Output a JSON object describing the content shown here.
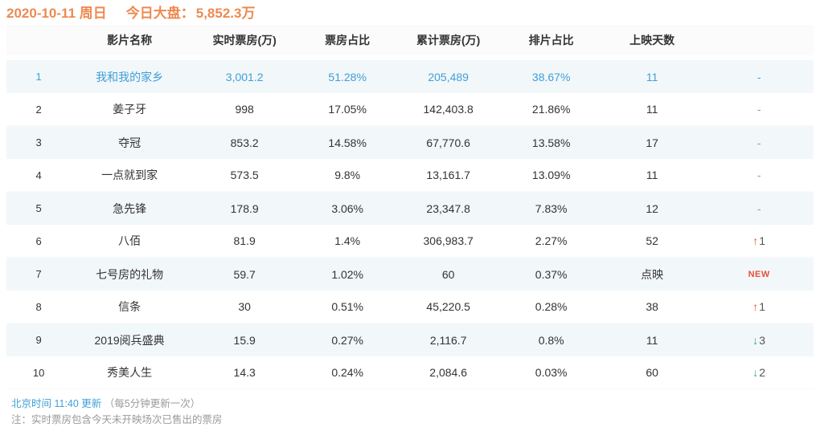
{
  "header": {
    "date_text": "2020-10-11 周日",
    "total_label": "今日大盘：",
    "total_value": "5,852.3万"
  },
  "table": {
    "columns": [
      "",
      "影片名称",
      "实时票房(万)",
      "票房占比",
      "累计票房(万)",
      "排片占比",
      "上映天数",
      ""
    ],
    "rows": [
      {
        "rank": "1",
        "name": "我和我的家乡",
        "realtime": "3,001.2",
        "share": "51.28%",
        "cumulative": "205,489",
        "screening": "38.67%",
        "days": "11",
        "trend": "-",
        "trend_type": "dash",
        "highlight": true
      },
      {
        "rank": "2",
        "name": "姜子牙",
        "realtime": "998",
        "share": "17.05%",
        "cumulative": "142,403.8",
        "screening": "21.86%",
        "days": "11",
        "trend": "-",
        "trend_type": "dash",
        "highlight": false
      },
      {
        "rank": "3",
        "name": "夺冠",
        "realtime": "853.2",
        "share": "14.58%",
        "cumulative": "67,770.6",
        "screening": "13.58%",
        "days": "17",
        "trend": "-",
        "trend_type": "dash",
        "highlight": false
      },
      {
        "rank": "4",
        "name": "一点就到家",
        "realtime": "573.5",
        "share": "9.8%",
        "cumulative": "13,161.7",
        "screening": "13.09%",
        "days": "11",
        "trend": "-",
        "trend_type": "dash",
        "highlight": false
      },
      {
        "rank": "5",
        "name": "急先锋",
        "realtime": "178.9",
        "share": "3.06%",
        "cumulative": "23,347.8",
        "screening": "7.83%",
        "days": "12",
        "trend": "-",
        "trend_type": "dash",
        "highlight": false
      },
      {
        "rank": "6",
        "name": "八佰",
        "realtime": "81.9",
        "share": "1.4%",
        "cumulative": "306,983.7",
        "screening": "2.27%",
        "days": "52",
        "trend": "1",
        "trend_type": "up",
        "highlight": false
      },
      {
        "rank": "7",
        "name": "七号房的礼物",
        "realtime": "59.7",
        "share": "1.02%",
        "cumulative": "60",
        "screening": "0.37%",
        "days": "点映",
        "trend": "NEW",
        "trend_type": "new",
        "highlight": false
      },
      {
        "rank": "8",
        "name": "信条",
        "realtime": "30",
        "share": "0.51%",
        "cumulative": "45,220.5",
        "screening": "0.28%",
        "days": "38",
        "trend": "1",
        "trend_type": "up",
        "highlight": false
      },
      {
        "rank": "9",
        "name": "2019阅兵盛典",
        "realtime": "15.9",
        "share": "0.27%",
        "cumulative": "2,116.7",
        "screening": "0.8%",
        "days": "11",
        "trend": "3",
        "trend_type": "down",
        "highlight": false
      },
      {
        "rank": "10",
        "name": "秀美人生",
        "realtime": "14.3",
        "share": "0.24%",
        "cumulative": "2,084.6",
        "screening": "0.03%",
        "days": "60",
        "trend": "2",
        "trend_type": "down",
        "highlight": false
      }
    ]
  },
  "footer": {
    "update_time": "北京时间 11:40 更新",
    "update_note": "（每5分钟更新一次）",
    "note": "注：实时票房包含今天未开映场次已售出的票房"
  },
  "icons": {
    "up_arrow": "↑",
    "down_arrow": "↓"
  },
  "colors": {
    "accent_orange": "#ed8a51",
    "link_blue": "#3f9fd8",
    "trend_up_red": "#e8503a",
    "trend_down_green": "#2db564",
    "stripe_row_bg": "#f2f7fa",
    "header_row_bg": "#fbfbfc"
  }
}
